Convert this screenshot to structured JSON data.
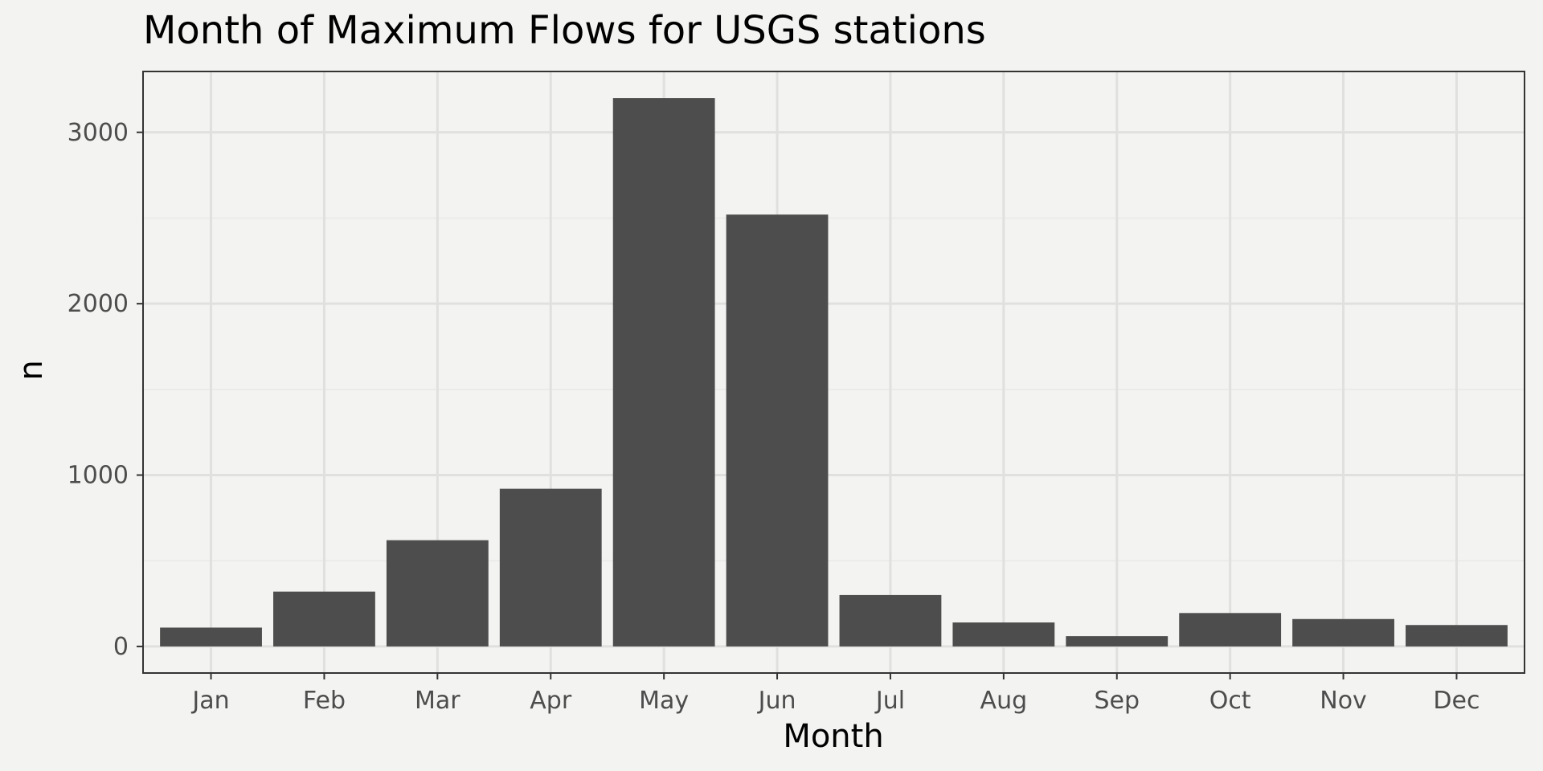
{
  "chart_data": {
    "type": "bar",
    "title": "Month of Maximum Flows for USGS stations",
    "xlabel": "Month",
    "ylabel": "n",
    "categories": [
      "Jan",
      "Feb",
      "Mar",
      "Apr",
      "May",
      "Jun",
      "Jul",
      "Aug",
      "Sep",
      "Oct",
      "Nov",
      "Dec"
    ],
    "values": [
      110,
      320,
      620,
      920,
      3200,
      2520,
      300,
      140,
      60,
      195,
      160,
      125
    ],
    "yticks": [
      0,
      1000,
      2000,
      3000
    ],
    "ytick_labels": [
      "0",
      "1000",
      "2000",
      "3000"
    ],
    "ylim": [
      -155,
      3355
    ],
    "grid": true,
    "colors": {
      "background": "#f3f3f1",
      "bar": "#4d4d4d",
      "grid_major": "#e0e0de",
      "grid_minor": "#e9e9e7",
      "panel_border": "#333333"
    }
  }
}
